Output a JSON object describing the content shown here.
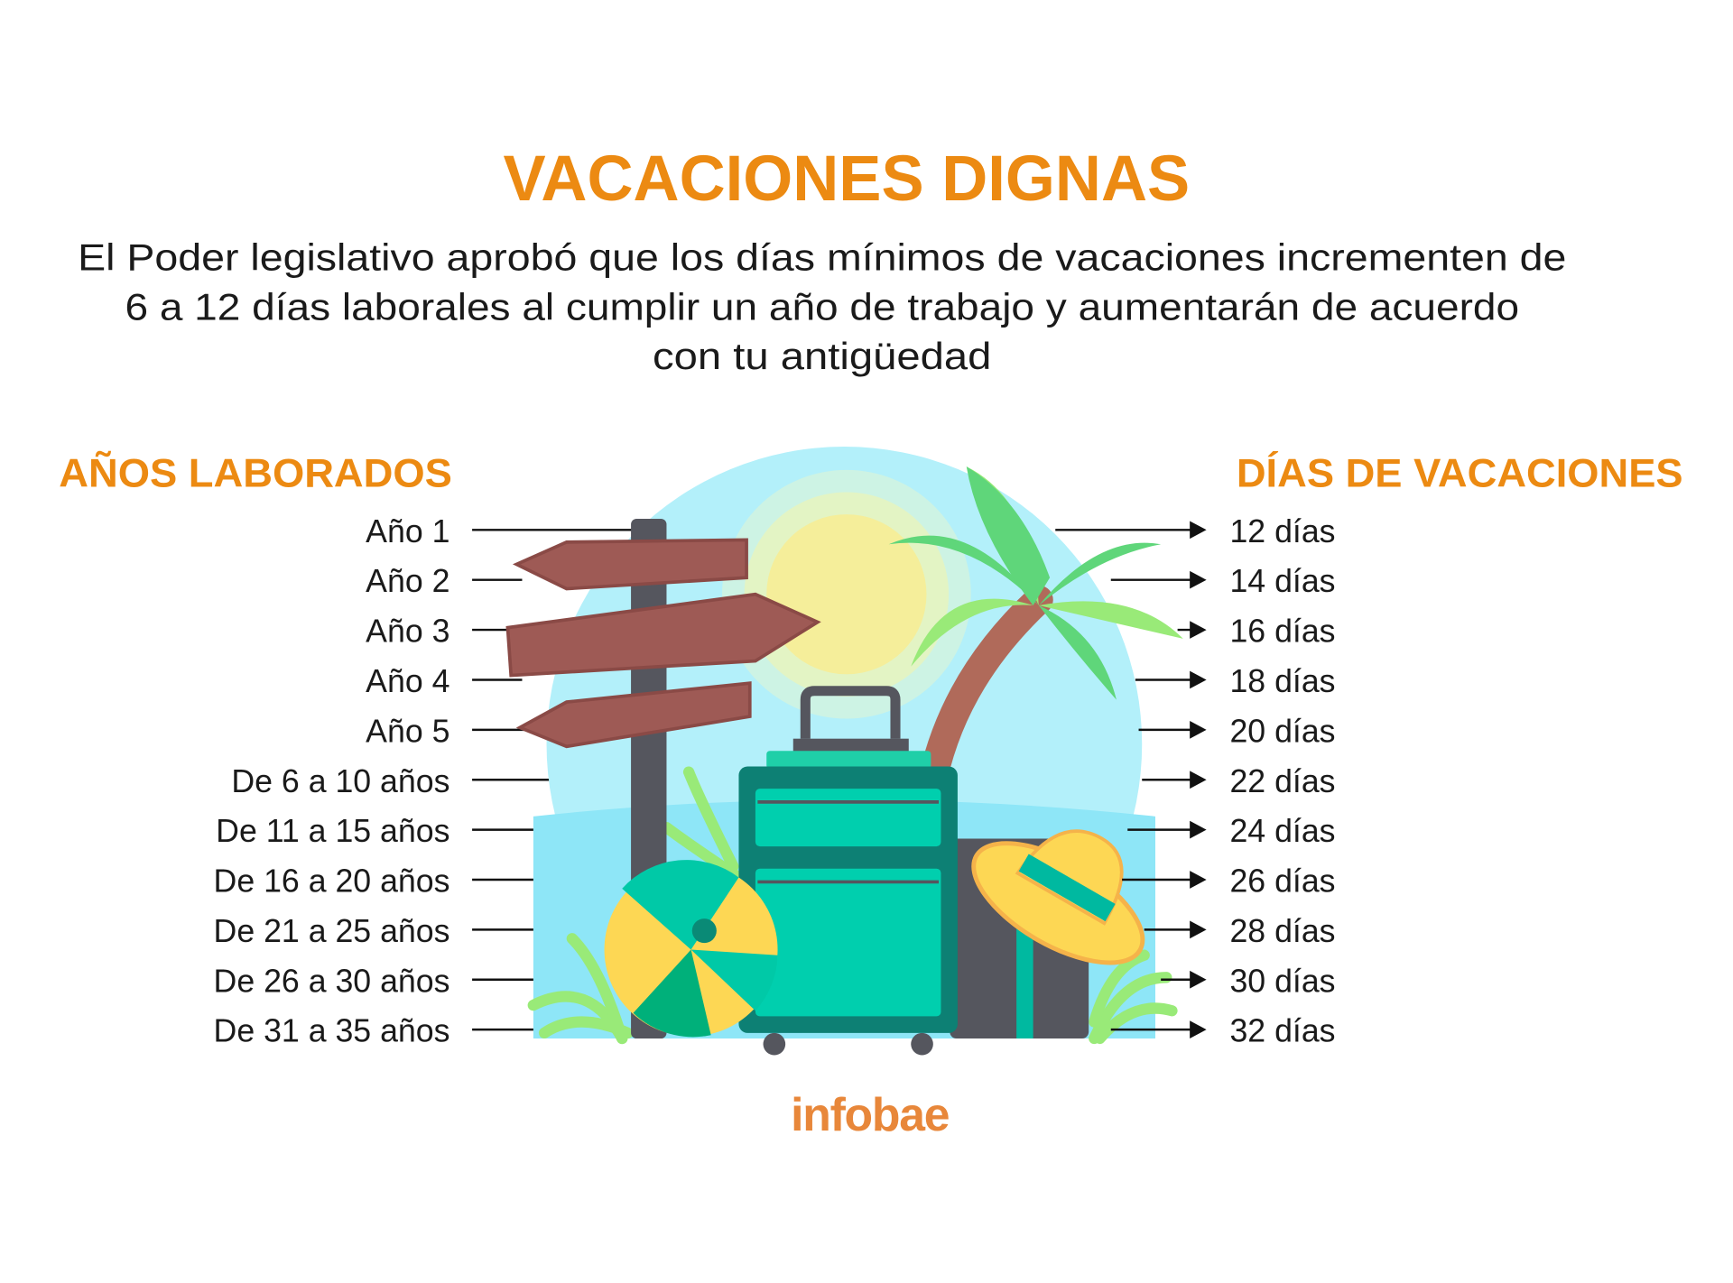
{
  "title": "VACACIONES DIGNAS",
  "subtitle": [
    "El Poder legislativo aprobó que los días mínimos de vacaciones incrementen de",
    "6 a 12 días laborales al cumplir un año de trabajo y aumentarán de acuerdo",
    "con tu antigüedad"
  ],
  "headers": {
    "left": "AÑOS LABORADOS",
    "right": "DÍAS DE VACACIONES"
  },
  "rows": [
    {
      "years": "Año 1",
      "days": "12 días"
    },
    {
      "years": "Año 2",
      "days": "14 días"
    },
    {
      "years": "Año 3",
      "days": "16 días"
    },
    {
      "years": "Año 4",
      "days": "18 días"
    },
    {
      "years": "Año 5",
      "days": "20 días"
    },
    {
      "years": "De 6 a 10 años",
      "days": "22 días"
    },
    {
      "years": "De 11 a 15 años",
      "days": "24 días"
    },
    {
      "years": "De 16 a 20 años",
      "days": "26 días"
    },
    {
      "years": "De 21 a 25 años",
      "days": "28 días"
    },
    {
      "years": "De 26 a 30 años",
      "days": "30 días"
    },
    {
      "years": "De 31 a 35 años",
      "days": "32 días"
    }
  ],
  "brand": "infobae",
  "colors": {
    "accent": "#ec8a12",
    "brand": "#e8873a",
    "text": "#1a1a1a",
    "sky": "#b3f0fa",
    "suitcase": "#0d8074",
    "teal": "#00cfae"
  }
}
